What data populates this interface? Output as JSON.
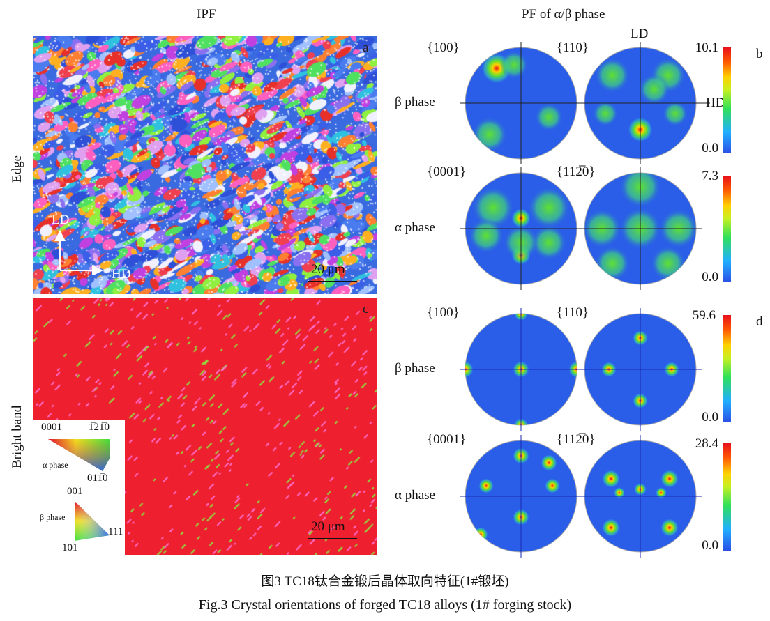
{
  "header": {
    "ipf_title": "IPF",
    "pf_title": "PF of α/β phase"
  },
  "left": {
    "row_labels": [
      "Edge",
      "Bright band"
    ],
    "panel_a": "a",
    "panel_c": "c",
    "axis_ld": "LD",
    "axis_hd": "HD",
    "scale_bar": "20 μm",
    "legend": {
      "alpha": {
        "label": "α phase",
        "top_left": "0001",
        "top_right": "1̅21̅0",
        "bottom": "011̅0"
      },
      "beta": {
        "label": "β phase",
        "top": "001",
        "right": "111",
        "bottom": "101"
      }
    }
  },
  "right": {
    "panel_b": "b",
    "panel_d": "d",
    "ld": "LD",
    "hd": "HD",
    "rows": [
      {
        "phase": "β phase",
        "left": "{100}",
        "right": "{110}",
        "max": "10.1",
        "min": "0.0"
      },
      {
        "phase": "α phase",
        "left": "{0001}",
        "right": "{112̅0}",
        "max": "7.3",
        "min": "0.0"
      },
      {
        "phase": "β phase",
        "left": "{100}",
        "right": "{110}",
        "max": "59.6",
        "min": "0.0"
      },
      {
        "phase": "α phase",
        "left": "{0001}",
        "right": "{112̅0}",
        "max": "28.4",
        "min": "0.0"
      }
    ]
  },
  "caption": {
    "zh": "图3  TC18钛合金锻后晶体取向特征(1#锻坯)",
    "en": "Fig.3  Crystal orientations of forged TC18 alloys (1# forging stock)"
  }
}
